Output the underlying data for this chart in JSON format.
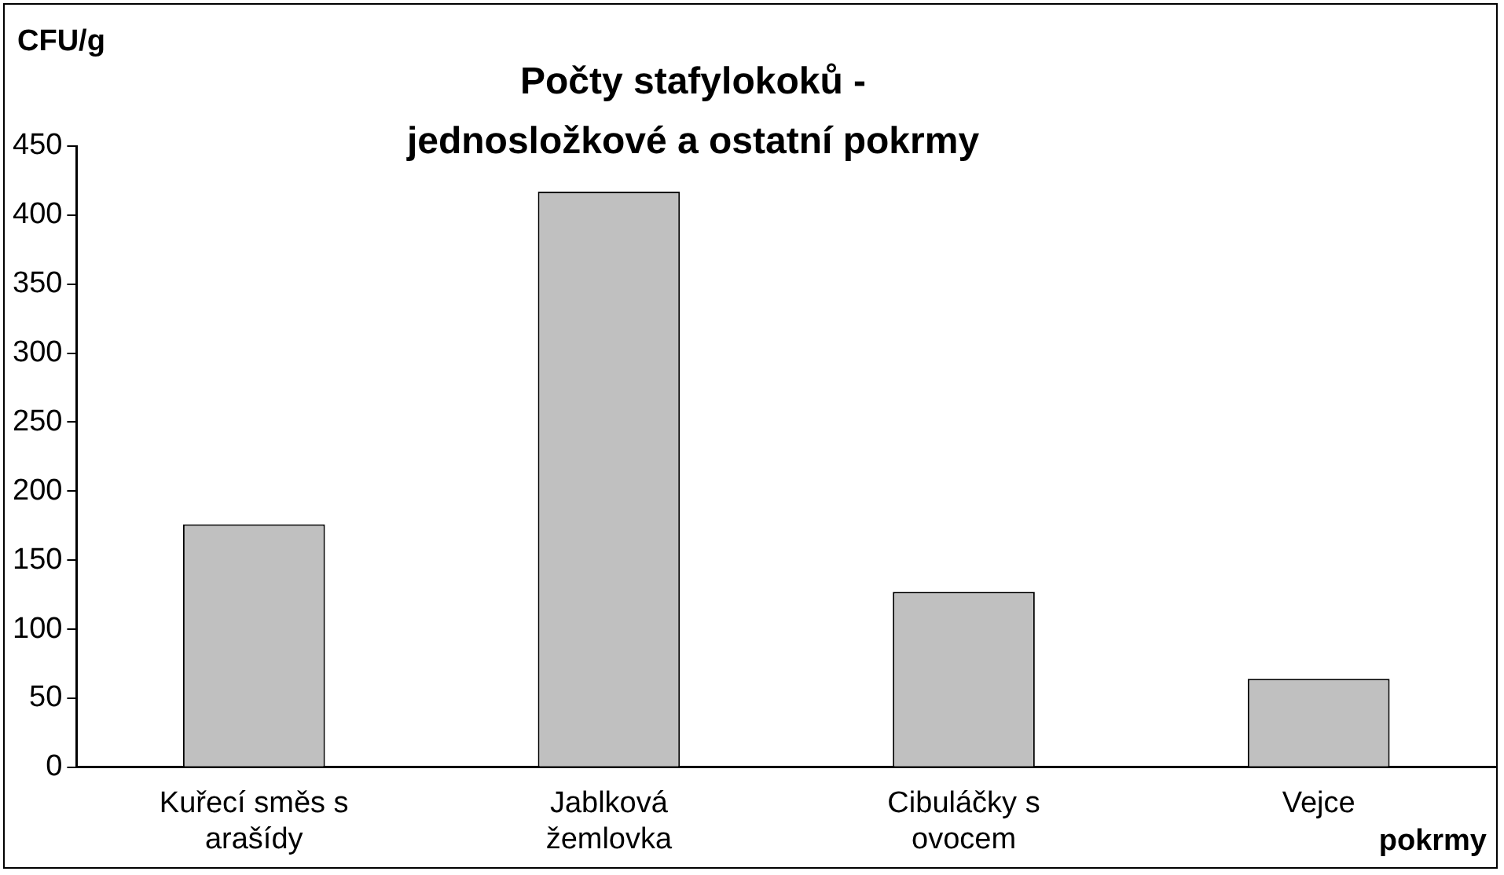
{
  "chart_data": {
    "type": "bar",
    "title": "Počty stafylokoků - jednosložkové a ostatní pokrmy",
    "ylabel": "CFU/g",
    "xlabel": "pokrmy",
    "categories": [
      "Kuřecí směs s arašídy",
      "Jablková žemlovka",
      "Cibuláčky s ovocem",
      "Vejce"
    ],
    "values": [
      176,
      417,
      127,
      64
    ],
    "color": "#c0c0c0",
    "ylim": [
      0,
      450
    ],
    "yticks": [
      0,
      50,
      100,
      150,
      200,
      250,
      300,
      350,
      400,
      450
    ],
    "grid": false,
    "legend": false
  }
}
